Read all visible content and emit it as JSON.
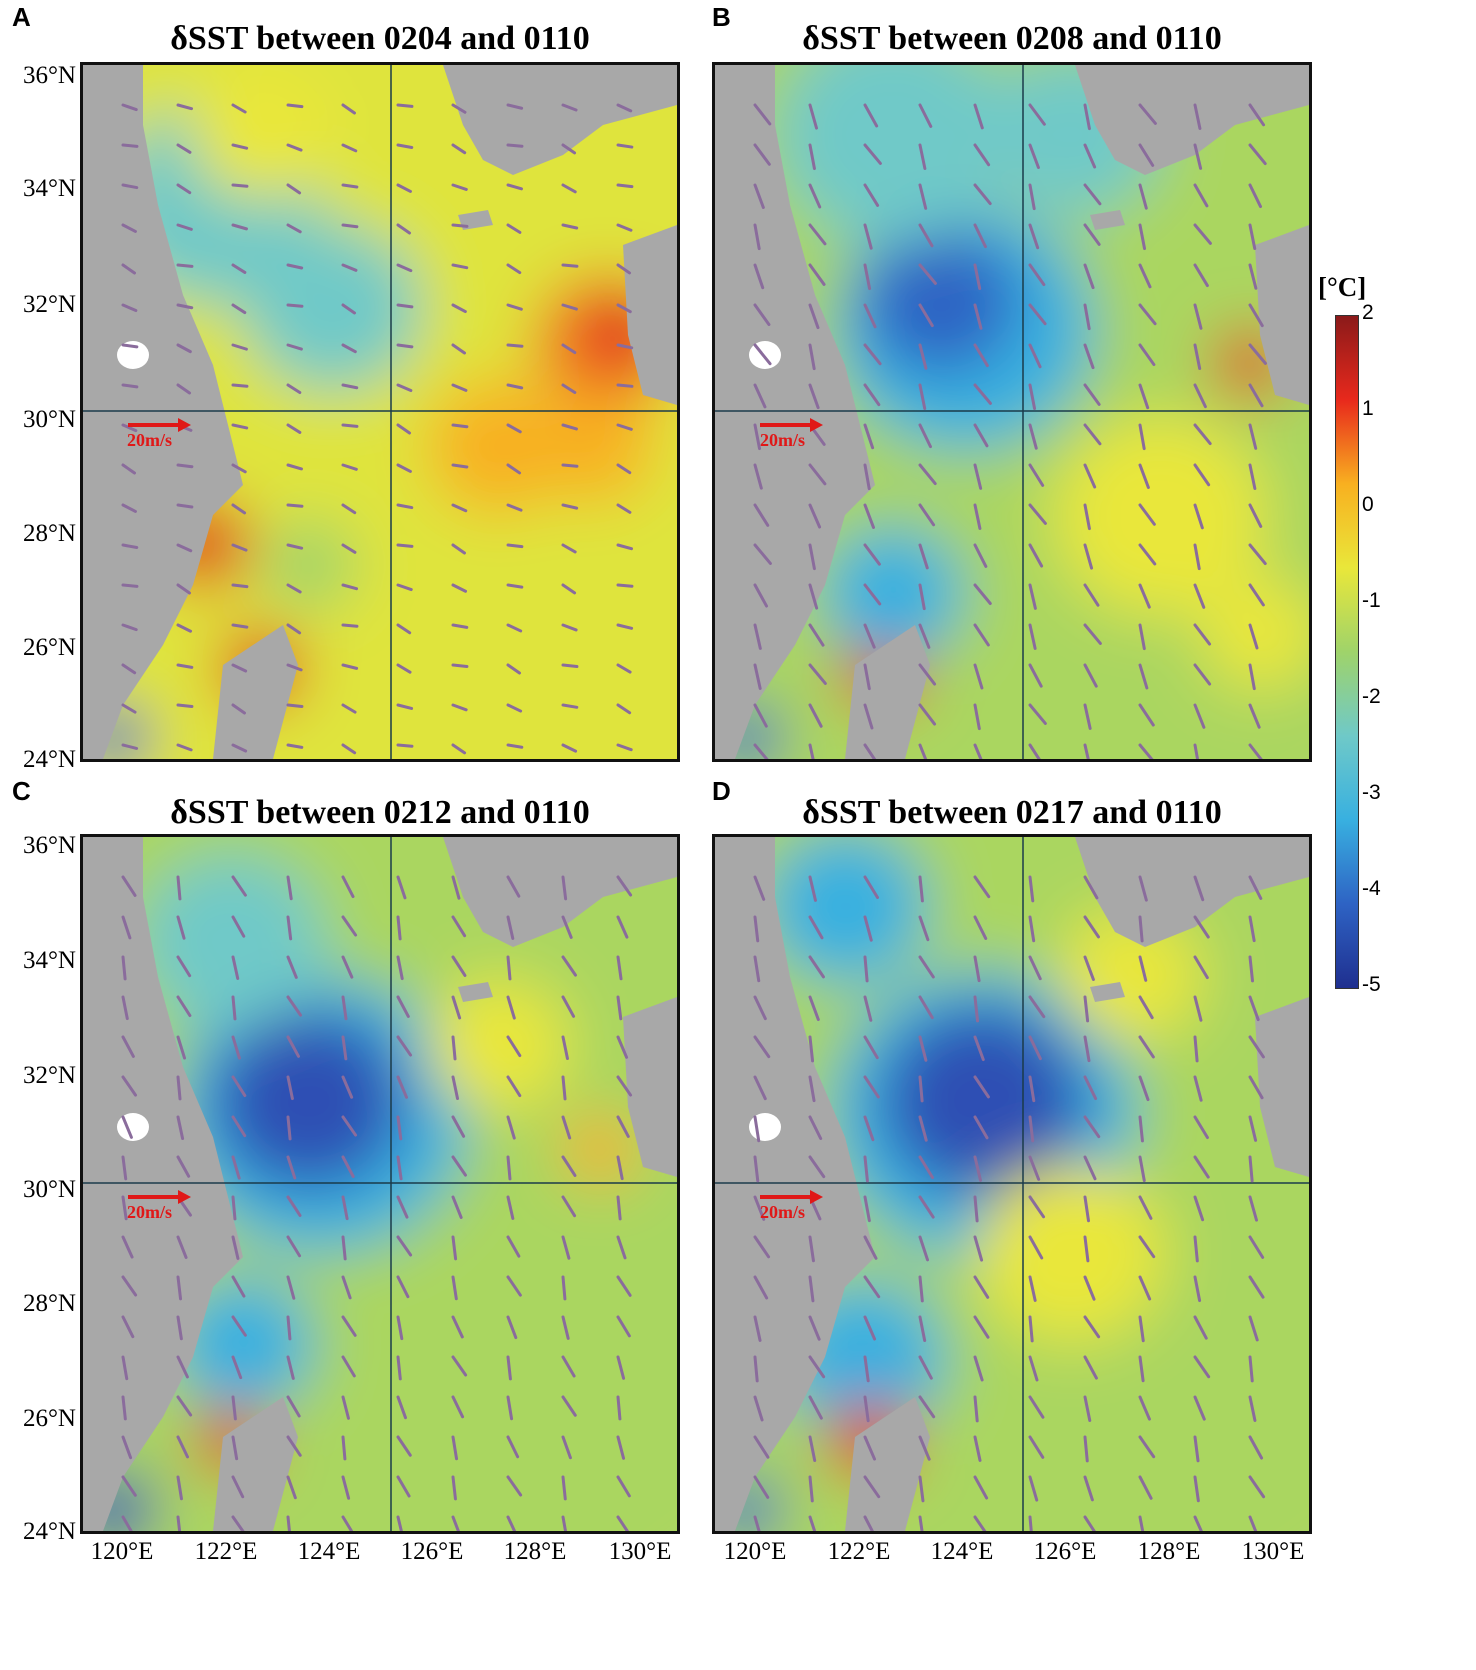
{
  "figure": {
    "panels": [
      {
        "letter": "A",
        "title": "δSST between 0204 and 0110",
        "variant": 0
      },
      {
        "letter": "B",
        "title": "δSST between 0208 and 0110",
        "variant": 1
      },
      {
        "letter": "C",
        "title": "δSST between 0212 and 0110",
        "variant": 2
      },
      {
        "letter": "D",
        "title": "δSST between 0217 and 0110",
        "variant": 3
      }
    ],
    "lat_labels": [
      "36°N",
      "34°N",
      "32°N",
      "30°N",
      "28°N",
      "26°N",
      "24°N"
    ],
    "lon_labels": [
      "120°E",
      "122°E",
      "124°E",
      "126°E",
      "128°E",
      "130°E"
    ],
    "wind_scale_label": "20m/s",
    "colorbar": {
      "unit": "[°C]",
      "ticks": [
        "2",
        "1",
        "0",
        "-1",
        "-2",
        "-3",
        "-4",
        "-5"
      ],
      "range": [
        -5,
        2
      ],
      "colors": [
        "#1f2f8f",
        "#2e63c4",
        "#38b0e0",
        "#6fc9c8",
        "#9fd36a",
        "#e9e73a",
        "#f8b020",
        "#e8291c",
        "#8b1a1a"
      ]
    },
    "colors": {
      "land": "#a8a8a8",
      "arrow": "#8a6c9c",
      "scale_arrow": "#e01818",
      "frame": "#111111"
    }
  }
}
